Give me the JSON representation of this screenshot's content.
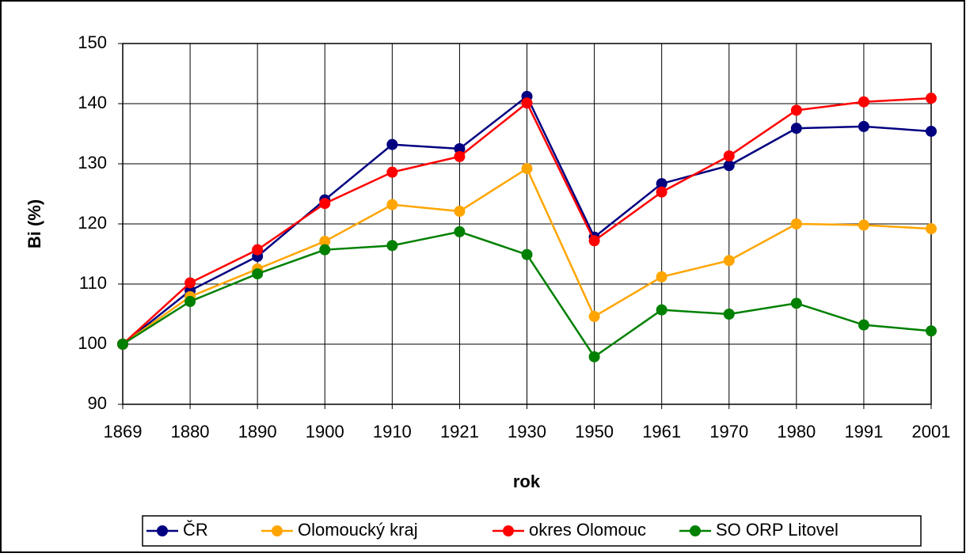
{
  "chart_data": {
    "type": "line",
    "x_label": "rok",
    "y_label": "Bi (%)",
    "categories": [
      "1869",
      "1880",
      "1890",
      "1900",
      "1910",
      "1921",
      "1930",
      "1950",
      "1961",
      "1970",
      "1980",
      "1991",
      "2001"
    ],
    "series": [
      {
        "name": "ČR",
        "color": "#000080",
        "values": [
          100,
          108.9,
          114.6,
          124,
          133.2,
          132.5,
          141.2,
          117.8,
          126.7,
          129.7,
          135.9,
          136.2,
          135.4
        ]
      },
      {
        "name": "Olomoucký kraj",
        "color": "#ffa500",
        "values": [
          100,
          107.9,
          112.5,
          117.1,
          123.2,
          122.1,
          129.2,
          104.6,
          111.2,
          113.9,
          120,
          119.8,
          119.2
        ]
      },
      {
        "name": "okres Olomouc",
        "color": "#ff0000",
        "values": [
          100,
          110.2,
          115.7,
          123.4,
          128.6,
          131.2,
          140.1,
          117.2,
          125.3,
          131.3,
          138.9,
          140.3,
          140.9
        ]
      },
      {
        "name": "SO ORP Litovel",
        "color": "#008000",
        "values": [
          100,
          107.1,
          111.7,
          115.7,
          116.4,
          118.7,
          114.9,
          97.9,
          105.7,
          105,
          106.8,
          103.2,
          102.2
        ]
      }
    ],
    "ylim": [
      90,
      150
    ],
    "yticks": [
      90,
      100,
      110,
      120,
      130,
      140,
      150
    ],
    "grid": true,
    "legend": "bottom"
  }
}
